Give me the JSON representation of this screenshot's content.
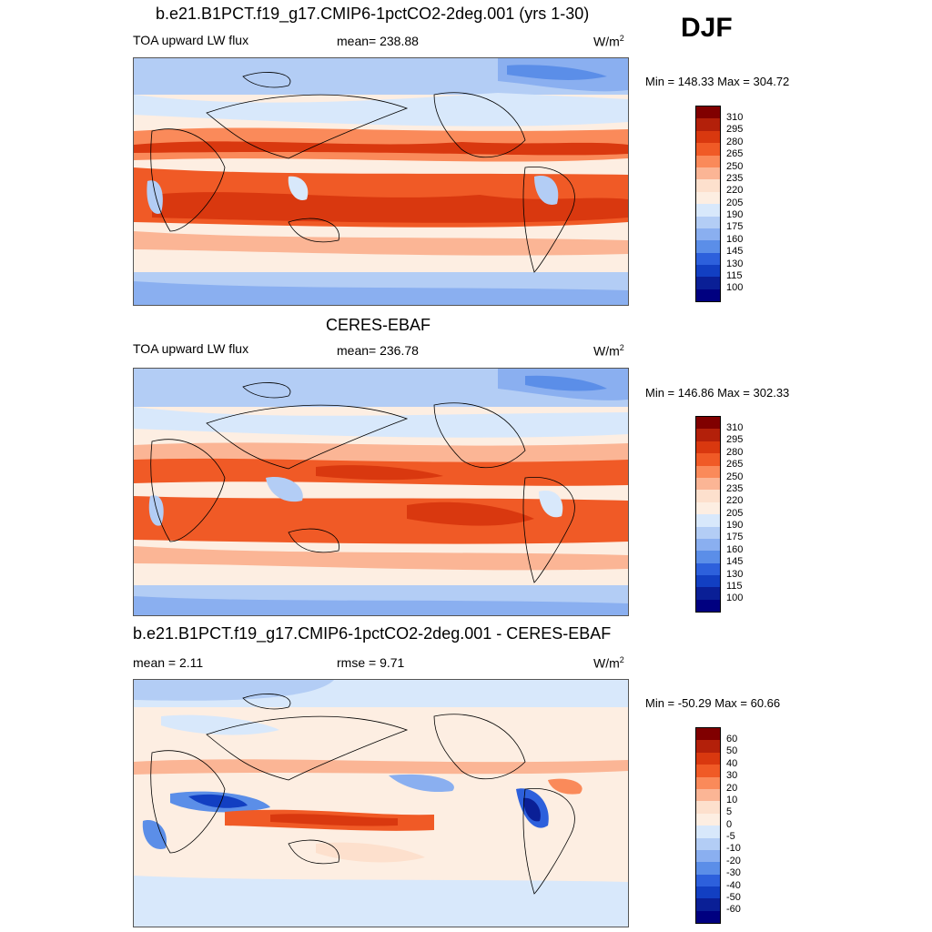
{
  "season": "DJF",
  "panels": [
    {
      "title": "b.e21.B1PCT.f19_g17.CMIP6-1pctCO2-2deg.001 (yrs 1-30)",
      "left_label": "TOA upward LW flux",
      "center_label": "mean= 238.88",
      "right_label": "W/m",
      "unit_exp": "2",
      "minmax": "Min = 148.33 Max = 304.72",
      "colorbar": [
        "310",
        "295",
        "280",
        "265",
        "250",
        "235",
        "220",
        "205",
        "190",
        "175",
        "160",
        "145",
        "130",
        "115",
        "100"
      ]
    },
    {
      "title": "CERES-EBAF",
      "left_label": "TOA upward LW flux",
      "center_label": "mean= 236.78",
      "right_label": "W/m",
      "unit_exp": "2",
      "minmax": "Min = 146.86 Max = 302.33",
      "colorbar": [
        "310",
        "295",
        "280",
        "265",
        "250",
        "235",
        "220",
        "205",
        "190",
        "175",
        "160",
        "145",
        "130",
        "115",
        "100"
      ]
    },
    {
      "title": "b.e21.B1PCT.f19_g17.CMIP6-1pctCO2-2deg.001 - CERES-EBAF",
      "left_label": "mean =   2.11",
      "center_label": "rmse =   9.71",
      "right_label": "W/m",
      "unit_exp": "2",
      "minmax": "Min = -50.29 Max =  60.66",
      "colorbar": [
        "60",
        "50",
        "40",
        "30",
        "20",
        "10",
        "5",
        "0",
        "-5",
        "-10",
        "-20",
        "-30",
        "-40",
        "-50",
        "-60"
      ]
    }
  ],
  "colors": {
    "palette": [
      "#800000",
      "#b3200a",
      "#d9380f",
      "#f05a26",
      "#fa8a5a",
      "#fbb595",
      "#fde0cd",
      "#fdeee2",
      "#d8e8fb",
      "#b3cdf5",
      "#8aaff0",
      "#5b8ee8",
      "#2d60dc",
      "#123fc2",
      "#0a1f96",
      "#000080"
    ]
  }
}
